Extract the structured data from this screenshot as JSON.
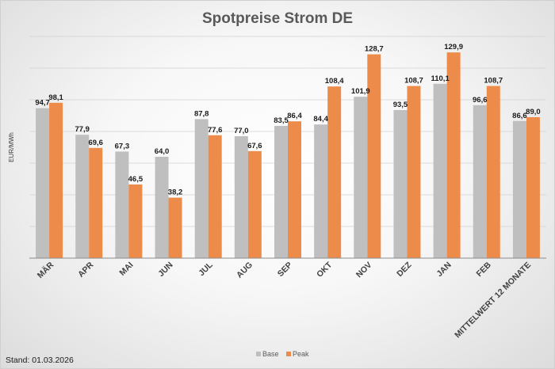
{
  "footer": "Stand: 01.03.2026",
  "colors": {
    "base": "#bfbfbf",
    "peak": "#ed8b4a",
    "grid": "#d0d0d0",
    "axis": "#8c8c8c"
  },
  "chart_data": {
    "type": "bar",
    "title": "Spotpreise Strom DE",
    "xlabel": "",
    "ylabel": "EUR/MWh",
    "ylim": [
      0,
      140
    ],
    "grid": true,
    "legend_position": "bottom",
    "categories": [
      "MÄR",
      "APR",
      "MAI",
      "JUN",
      "JUL",
      "AUG",
      "SEP",
      "OKT",
      "NOV",
      "DEZ",
      "JAN",
      "FEB",
      "MITTELWERT 12 MONATE"
    ],
    "series": [
      {
        "name": "Base",
        "color": "#bfbfbf",
        "values": [
          94.7,
          77.9,
          67.3,
          64.0,
          87.8,
          77.0,
          83.5,
          84.4,
          101.9,
          93.5,
          110.1,
          96.6,
          86.6
        ]
      },
      {
        "name": "Peak",
        "color": "#ed8b4a",
        "values": [
          98.1,
          69.6,
          46.5,
          38.2,
          77.6,
          67.6,
          86.4,
          108.4,
          128.7,
          108.7,
          129.9,
          108.7,
          89.0
        ]
      }
    ]
  }
}
